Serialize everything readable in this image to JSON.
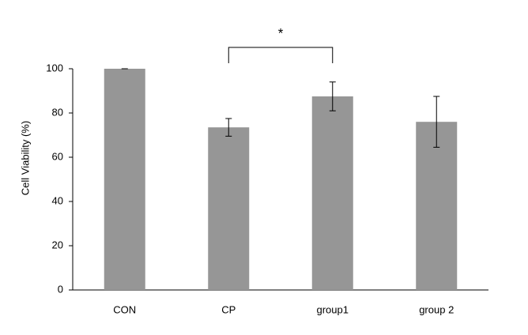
{
  "chart_data": {
    "type": "bar",
    "y_label": "Cell Viability (%)",
    "categories": [
      "CON",
      "CP",
      "group1",
      "group 2"
    ],
    "values": [
      100,
      73.5,
      87.5,
      76
    ],
    "errors": [
      0,
      4,
      6.5,
      11.5
    ],
    "color": "#969696",
    "ylim": [
      0,
      100
    ],
    "yticks": [
      0,
      20,
      40,
      60,
      80,
      100
    ],
    "significance": [
      {
        "between": [
          "CP",
          "group1"
        ],
        "label": "*"
      }
    ]
  }
}
